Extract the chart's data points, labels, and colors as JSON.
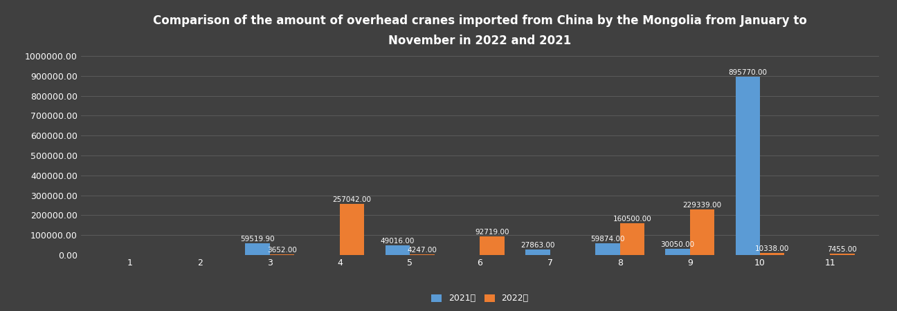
{
  "title": "Comparison of the amount of overhead cranes imported from China by the Mongolia from January to\nNovember in 2022 and 2021",
  "months": [
    1,
    2,
    3,
    4,
    5,
    6,
    7,
    8,
    9,
    10,
    11
  ],
  "values_2021": [
    0,
    0,
    59519.9,
    0,
    49016.0,
    0,
    27863.0,
    59874.0,
    30050.0,
    895770.0,
    0
  ],
  "values_2022": [
    0,
    0,
    3652.0,
    257042.0,
    4247.0,
    92719.0,
    0,
    160500.0,
    229339.0,
    10338.0,
    7455.0
  ],
  "color_2021": "#5B9BD5",
  "color_2022": "#ED7D31",
  "background_color": "#404040",
  "grid_color": "#606060",
  "text_color": "white",
  "legend_2021": "2021年",
  "legend_2022": "2022年",
  "ylim": [
    0,
    1000000
  ],
  "ytick_labels": [
    "0.00",
    "100000.00",
    "200000.00",
    "300000.00",
    "400000.00",
    "500000.00",
    "600000.00",
    "700000.00",
    "800000.00",
    "900000.00",
    "1000000.00"
  ],
  "ytick_values": [
    0,
    100000,
    200000,
    300000,
    400000,
    500000,
    600000,
    700000,
    800000,
    900000,
    1000000
  ],
  "bar_width": 0.35,
  "label_fontsize": 7.5,
  "title_fontsize": 12,
  "axis_label_fontsize": 9
}
